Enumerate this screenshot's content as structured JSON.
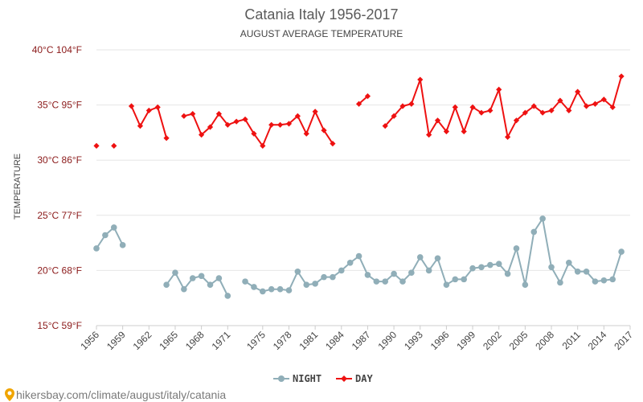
{
  "chart_data": {
    "type": "line",
    "title": "Catania Italy 1956-2017",
    "subtitle": "AUGUST AVERAGE TEMPERATURE",
    "ylabel": "TEMPERATURE",
    "ylim": [
      15,
      40
    ],
    "xlim": [
      1956,
      2017
    ],
    "y_ticks": [
      {
        "value": 15,
        "label": "15°C 59°F"
      },
      {
        "value": 20,
        "label": "20°C 68°F"
      },
      {
        "value": 25,
        "label": "25°C 77°F"
      },
      {
        "value": 30,
        "label": "30°C 86°F"
      },
      {
        "value": 35,
        "label": "35°C 95°F"
      },
      {
        "value": 40,
        "label": "40°C 104°F"
      }
    ],
    "x_ticks": [
      1956,
      1959,
      1962,
      1965,
      1968,
      1971,
      1975,
      1978,
      1981,
      1984,
      1987,
      1990,
      1993,
      1996,
      1999,
      2002,
      2005,
      2008,
      2011,
      2014,
      2017
    ],
    "grid": "horizontal",
    "legend_position": "bottom-center",
    "series": [
      {
        "name": "NIGHT",
        "color": "#90aeb8",
        "marker": "circle",
        "points": [
          [
            1956,
            22.0
          ],
          [
            1957,
            23.2
          ],
          [
            1958,
            23.9
          ],
          [
            1959,
            22.3
          ],
          [
            1964,
            18.7
          ],
          [
            1965,
            19.8
          ],
          [
            1966,
            18.3
          ],
          [
            1967,
            19.3
          ],
          [
            1968,
            19.5
          ],
          [
            1969,
            18.7
          ],
          [
            1970,
            19.3
          ],
          [
            1971,
            17.7
          ],
          [
            1973,
            19.0
          ],
          [
            1974,
            18.5
          ],
          [
            1975,
            18.1
          ],
          [
            1976,
            18.3
          ],
          [
            1977,
            18.3
          ],
          [
            1978,
            18.2
          ],
          [
            1979,
            19.9
          ],
          [
            1980,
            18.7
          ],
          [
            1981,
            18.8
          ],
          [
            1982,
            19.4
          ],
          [
            1983,
            19.4
          ],
          [
            1984,
            20.0
          ],
          [
            1985,
            20.7
          ],
          [
            1986,
            21.3
          ],
          [
            1987,
            19.6
          ],
          [
            1988,
            19.0
          ],
          [
            1989,
            19.0
          ],
          [
            1990,
            19.7
          ],
          [
            1991,
            19.0
          ],
          [
            1992,
            19.8
          ],
          [
            1993,
            21.2
          ],
          [
            1994,
            20.0
          ],
          [
            1995,
            21.1
          ],
          [
            1996,
            18.7
          ],
          [
            1997,
            19.2
          ],
          [
            1998,
            19.2
          ],
          [
            1999,
            20.2
          ],
          [
            2000,
            20.3
          ],
          [
            2001,
            20.5
          ],
          [
            2002,
            20.6
          ],
          [
            2003,
            19.7
          ],
          [
            2004,
            22.0
          ],
          [
            2005,
            18.7
          ],
          [
            2006,
            23.5
          ],
          [
            2007,
            24.7
          ],
          [
            2008,
            20.3
          ],
          [
            2009,
            18.9
          ],
          [
            2010,
            20.7
          ],
          [
            2011,
            19.9
          ],
          [
            2012,
            19.9
          ],
          [
            2013,
            19.0
          ],
          [
            2014,
            19.1
          ],
          [
            2015,
            19.2
          ],
          [
            2016,
            21.7
          ]
        ]
      },
      {
        "name": "DAY",
        "color": "#ee1111",
        "marker": "diamond",
        "points": [
          [
            1956,
            31.3
          ],
          [
            1958,
            31.3
          ],
          [
            1960,
            34.9
          ],
          [
            1961,
            33.1
          ],
          [
            1962,
            34.5
          ],
          [
            1963,
            34.8
          ],
          [
            1964,
            32.0
          ],
          [
            1966,
            34.0
          ],
          [
            1967,
            34.2
          ],
          [
            1968,
            32.3
          ],
          [
            1969,
            33.0
          ],
          [
            1970,
            34.2
          ],
          [
            1971,
            33.2
          ],
          [
            1972,
            33.5
          ],
          [
            1973,
            33.7
          ],
          [
            1974,
            32.4
          ],
          [
            1975,
            31.3
          ],
          [
            1976,
            33.2
          ],
          [
            1977,
            33.2
          ],
          [
            1978,
            33.3
          ],
          [
            1979,
            34.0
          ],
          [
            1980,
            32.4
          ],
          [
            1981,
            34.4
          ],
          [
            1982,
            32.7
          ],
          [
            1983,
            31.5
          ],
          [
            1986,
            35.1
          ],
          [
            1987,
            35.8
          ],
          [
            1989,
            33.1
          ],
          [
            1990,
            34.0
          ],
          [
            1991,
            34.9
          ],
          [
            1992,
            35.1
          ],
          [
            1993,
            37.3
          ],
          [
            1994,
            32.3
          ],
          [
            1995,
            33.6
          ],
          [
            1996,
            32.6
          ],
          [
            1997,
            34.8
          ],
          [
            1998,
            32.6
          ],
          [
            1999,
            34.8
          ],
          [
            2000,
            34.3
          ],
          [
            2001,
            34.5
          ],
          [
            2002,
            36.4
          ],
          [
            2003,
            32.1
          ],
          [
            2004,
            33.6
          ],
          [
            2005,
            34.3
          ],
          [
            2006,
            34.9
          ],
          [
            2007,
            34.3
          ],
          [
            2008,
            34.5
          ],
          [
            2009,
            35.4
          ],
          [
            2010,
            34.5
          ],
          [
            2011,
            36.2
          ],
          [
            2012,
            34.9
          ],
          [
            2013,
            35.1
          ],
          [
            2014,
            35.5
          ],
          [
            2015,
            34.8
          ],
          [
            2016,
            37.6
          ]
        ]
      }
    ],
    "footer": "hikersbay.com/climate/august/italy/catania"
  }
}
